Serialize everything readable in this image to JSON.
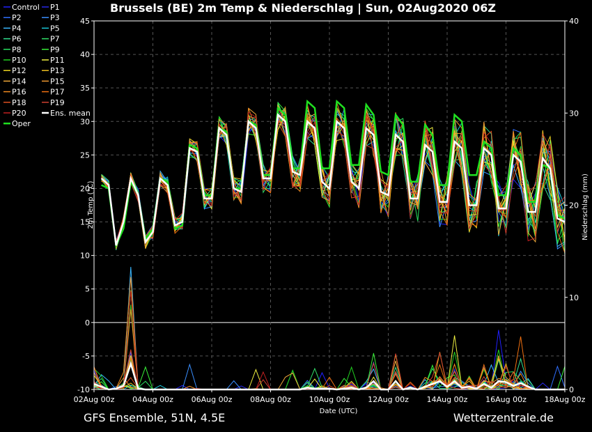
{
  "chart_data": {
    "type": "line",
    "title": "Brussels  (BE)  2m Temp & Niederschlag | Sun, 02Aug2020 06Z",
    "xlabel": "Date (UTC)",
    "ylabel": "2m Temp (°C)",
    "y2label": "Niederschlag (mm)",
    "x_ticks": [
      "02Aug 00z",
      "04Aug 00z",
      "06Aug 00z",
      "08Aug 00z",
      "10Aug 00z",
      "12Aug 00z",
      "14Aug 00z",
      "16Aug 00z",
      "18Aug 00z"
    ],
    "xlim_hours": [
      0,
      384
    ],
    "ylim": [
      -10,
      45
    ],
    "y_ticks": [
      -10,
      -5,
      0,
      5,
      10,
      15,
      20,
      25,
      30,
      35,
      40,
      45
    ],
    "y2lim": [
      0,
      40
    ],
    "y2_ticks": [
      0,
      10,
      20,
      30,
      40
    ],
    "grid": true,
    "legend_placement": "left",
    "legend": [
      {
        "name": "Control",
        "color": "#2020ff"
      },
      {
        "name": "P1",
        "color": "#2828e8"
      },
      {
        "name": "P2",
        "color": "#2f6fff"
      },
      {
        "name": "P3",
        "color": "#3a8fff"
      },
      {
        "name": "P4",
        "color": "#3ab8ff"
      },
      {
        "name": "P5",
        "color": "#18c8d8"
      },
      {
        "name": "P6",
        "color": "#30e090"
      },
      {
        "name": "P7",
        "color": "#30e068"
      },
      {
        "name": "P8",
        "color": "#28e060"
      },
      {
        "name": "P9",
        "color": "#38f038"
      },
      {
        "name": "P10",
        "color": "#20d020"
      },
      {
        "name": "P11",
        "color": "#f0f040"
      },
      {
        "name": "P12",
        "color": "#f0d820"
      },
      {
        "name": "P13",
        "color": "#f0c020"
      },
      {
        "name": "P14",
        "color": "#f0a838"
      },
      {
        "name": "P15",
        "color": "#f09830"
      },
      {
        "name": "P16",
        "color": "#f08a20"
      },
      {
        "name": "P17",
        "color": "#f07010"
      },
      {
        "name": "P18",
        "color": "#e05020"
      },
      {
        "name": "P19",
        "color": "#d04030"
      },
      {
        "name": "P20",
        "color": "#c02020"
      },
      {
        "name": "Ens. mean",
        "color": "#ffffff"
      },
      {
        "name": "Oper",
        "color": "#20e020"
      }
    ],
    "temp_x_hours": [
      6,
      12,
      18,
      24,
      30,
      36,
      42,
      48,
      54,
      60,
      66,
      72,
      78,
      84,
      90,
      96,
      102,
      108,
      114,
      120,
      126,
      132,
      138,
      144,
      150,
      156,
      162,
      168,
      174,
      180,
      186,
      192,
      198,
      204,
      210,
      216,
      222,
      228,
      234,
      240,
      246,
      252,
      258,
      264,
      270,
      276,
      282,
      288,
      294,
      300,
      306,
      312,
      318,
      324,
      330,
      336,
      342,
      348,
      354,
      360,
      366,
      372,
      378,
      384
    ],
    "ens_mean_temp": [
      21.5,
      20.5,
      11.5,
      15,
      21.5,
      19,
      12,
      13.5,
      21.5,
      20.5,
      14.5,
      15,
      26,
      25.5,
      18.5,
      18.5,
      29,
      28,
      20,
      19.5,
      30,
      29,
      21.5,
      21.5,
      31,
      30,
      22.5,
      22,
      30,
      29,
      21,
      20,
      30,
      29,
      21,
      20,
      29,
      28,
      19.5,
      19,
      28,
      27,
      18.5,
      18.5,
      26.5,
      25.5,
      18,
      18,
      27,
      26,
      17.5,
      17.5,
      26,
      25,
      17,
      17,
      25,
      24,
      16.5,
      16.5,
      24.5,
      23,
      15.5,
      15
    ],
    "oper_temp": [
      20.5,
      20,
      11.5,
      14,
      21,
      19,
      12.5,
      14,
      21.5,
      21,
      14,
      14.5,
      26.5,
      26,
      19,
      19,
      29,
      28.5,
      20,
      20,
      30,
      29.5,
      22,
      22,
      32,
      31,
      23,
      23,
      33,
      32,
      23,
      23,
      33,
      32,
      23.5,
      23.5,
      32.5,
      31,
      22.5,
      22,
      31,
      29.5,
      21,
      21,
      29.5,
      28,
      20.5,
      20.5,
      31,
      30,
      22,
      22,
      27,
      26,
      19,
      19,
      26,
      25,
      18,
      18,
      23.5,
      23,
      16,
      15.5
    ],
    "precip_x_hours": [
      0,
      6,
      12,
      18,
      24,
      30,
      36,
      42,
      48,
      54,
      60,
      66,
      72,
      78,
      84,
      90,
      96,
      102,
      108,
      114,
      120,
      126,
      132,
      138,
      144,
      150,
      156,
      162,
      168,
      174,
      180,
      186,
      192,
      198,
      204,
      210,
      216,
      222,
      228,
      234,
      240,
      246,
      252,
      258,
      264,
      270,
      276,
      282,
      288,
      294,
      300,
      306,
      312,
      318,
      324,
      330,
      336,
      342,
      348,
      354,
      360,
      366,
      372,
      378,
      384
    ],
    "ens_mean_precip": [
      0.6,
      0.3,
      0,
      0.1,
      0.4,
      2.8,
      0.1,
      0,
      0,
      0,
      0,
      0,
      0,
      0,
      0,
      0,
      0,
      0,
      0,
      0,
      0,
      0,
      0,
      0,
      0,
      0,
      0,
      0,
      0,
      0.2,
      0.1,
      0.1,
      0.1,
      0,
      0.1,
      0.2,
      0,
      0.2,
      0.9,
      0,
      0,
      0.9,
      0,
      0.2,
      0,
      0.3,
      0.6,
      0.9,
      0.3,
      0.9,
      0.2,
      0.3,
      0.1,
      0.6,
      0.2,
      0.9,
      0.8,
      0.4,
      0.7,
      0.3,
      0,
      0,
      0,
      0,
      0
    ]
  },
  "footer": {
    "left": "GFS Ensemble, 51N, 4.5E",
    "right": "Wetterzentrale.de"
  }
}
